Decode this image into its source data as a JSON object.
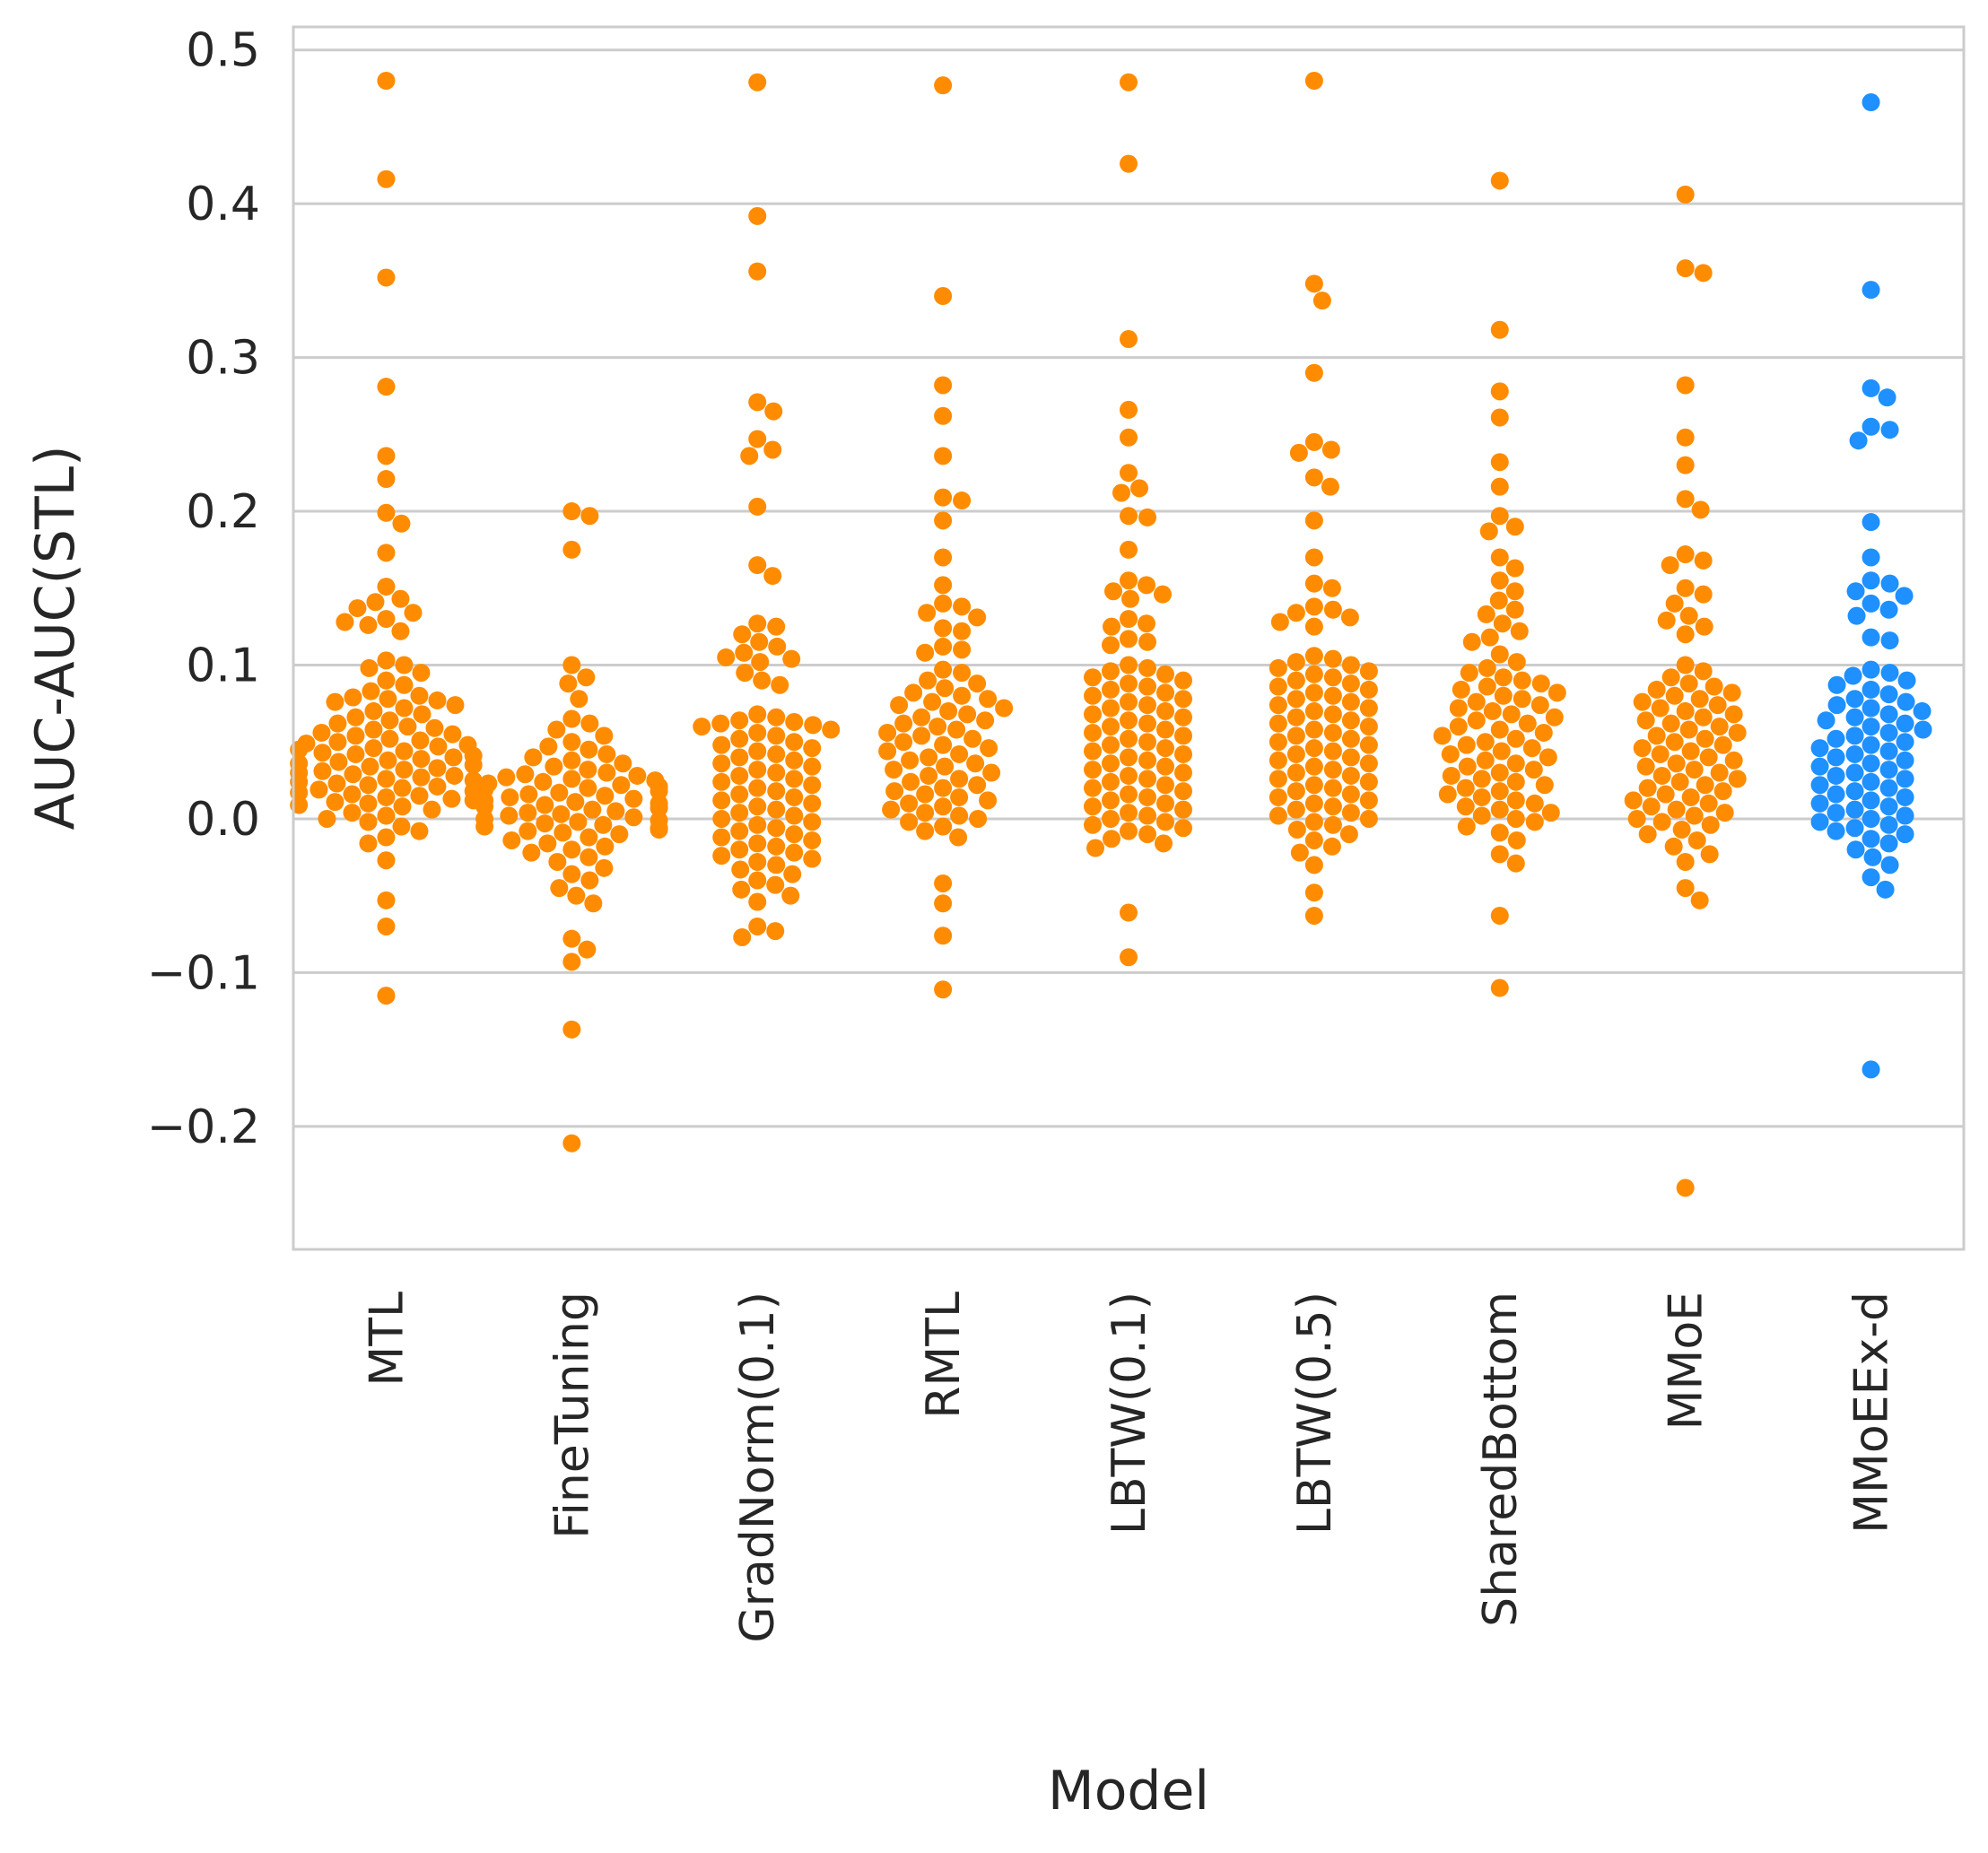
{
  "chart_data": {
    "type": "scatter",
    "subtype": "swarm",
    "xlabel": "Model",
    "ylabel": "AUC-AUC(STL)",
    "ylim": [
      -0.28,
      0.515
    ],
    "yticks": [
      -0.2,
      -0.1,
      0.0,
      0.1,
      0.2,
      0.3,
      0.4,
      0.5
    ],
    "ytick_labels": [
      "−0.2",
      "−0.1",
      "0.0",
      "0.1",
      "0.2",
      "0.3",
      "0.4",
      "0.5"
    ],
    "grid": "horizontal",
    "categories": [
      "MTL",
      "FineTuning",
      "GradNorm(0.1)",
      "RMTL",
      "LBTW(0.1)",
      "LBTW(0.5)",
      "SharedBottom",
      "MMoE",
      "MMoEEx-d"
    ],
    "colors": {
      "MTL": "#ff8c00",
      "FineTuning": "#ff8c00",
      "GradNorm(0.1)": "#ff8c00",
      "RMTL": "#ff8c00",
      "LBTW(0.1)": "#ff8c00",
      "LBTW(0.5)": "#ff8c00",
      "SharedBottom": "#ff8c00",
      "MMoE": "#ff8c00",
      "MMoEEx-d": "#1e90ff"
    },
    "series": [
      {
        "name": "MTL",
        "values": [
          0.48,
          0.416,
          0.352,
          0.281,
          0.236,
          0.221,
          0.199,
          0.192,
          0.173,
          0.151,
          0.143,
          0.141,
          0.137,
          0.134,
          0.13,
          0.128,
          0.126,
          0.122,
          0.103,
          0.1,
          0.098,
          0.095,
          0.09,
          0.087,
          0.083,
          0.08,
          0.079,
          0.078,
          0.077,
          0.076,
          0.074,
          0.072,
          0.07,
          0.068,
          0.066,
          0.064,
          0.062,
          0.06,
          0.059,
          0.058,
          0.056,
          0.055,
          0.054,
          0.052,
          0.051,
          0.05,
          0.049,
          0.048,
          0.047,
          0.046,
          0.045,
          0.044,
          0.043,
          0.042,
          0.041,
          0.04,
          0.039,
          0.038,
          0.037,
          0.036,
          0.035,
          0.034,
          0.033,
          0.032,
          0.031,
          0.03,
          0.029,
          0.028,
          0.027,
          0.026,
          0.025,
          0.024,
          0.023,
          0.022,
          0.021,
          0.02,
          0.019,
          0.018,
          0.017,
          0.016,
          0.015,
          0.014,
          0.013,
          0.012,
          0.011,
          0.01,
          0.009,
          0.008,
          0.006,
          0.004,
          0.002,
          0.0,
          -0.002,
          -0.005,
          -0.008,
          -0.012,
          -0.016,
          -0.027,
          -0.053,
          -0.07,
          -0.115
        ]
      },
      {
        "name": "FineTuning",
        "values": [
          0.2,
          0.197,
          0.175,
          0.1,
          0.092,
          0.088,
          0.078,
          0.065,
          0.062,
          0.058,
          0.054,
          0.05,
          0.047,
          0.045,
          0.042,
          0.04,
          0.038,
          0.036,
          0.034,
          0.032,
          0.03,
          0.029,
          0.028,
          0.027,
          0.026,
          0.025,
          0.024,
          0.023,
          0.022,
          0.021,
          0.02,
          0.019,
          0.018,
          0.017,
          0.016,
          0.015,
          0.014,
          0.013,
          0.012,
          0.011,
          0.01,
          0.009,
          0.008,
          0.007,
          0.006,
          0.005,
          0.004,
          0.003,
          0.002,
          0.001,
          0.0,
          -0.001,
          -0.002,
          -0.003,
          -0.004,
          -0.005,
          -0.006,
          -0.007,
          -0.008,
          -0.009,
          -0.01,
          -0.012,
          -0.014,
          -0.016,
          -0.018,
          -0.02,
          -0.022,
          -0.025,
          -0.028,
          -0.032,
          -0.036,
          -0.04,
          -0.045,
          -0.05,
          -0.055,
          -0.078,
          -0.085,
          -0.093,
          -0.137,
          -0.211
        ]
      },
      {
        "name": "GradNorm(0.1)",
        "values": [
          0.479,
          0.392,
          0.356,
          0.271,
          0.265,
          0.247,
          0.24,
          0.236,
          0.203,
          0.165,
          0.158,
          0.127,
          0.125,
          0.12,
          0.115,
          0.112,
          0.108,
          0.105,
          0.104,
          0.102,
          0.095,
          0.09,
          0.087,
          0.068,
          0.066,
          0.064,
          0.063,
          0.062,
          0.061,
          0.06,
          0.058,
          0.056,
          0.054,
          0.052,
          0.05,
          0.048,
          0.046,
          0.044,
          0.042,
          0.04,
          0.038,
          0.036,
          0.034,
          0.032,
          0.03,
          0.028,
          0.026,
          0.024,
          0.022,
          0.02,
          0.018,
          0.016,
          0.014,
          0.012,
          0.01,
          0.008,
          0.006,
          0.004,
          0.002,
          0.0,
          -0.002,
          -0.004,
          -0.006,
          -0.008,
          -0.01,
          -0.012,
          -0.014,
          -0.016,
          -0.018,
          -0.02,
          -0.022,
          -0.024,
          -0.026,
          -0.028,
          -0.03,
          -0.033,
          -0.036,
          -0.04,
          -0.043,
          -0.046,
          -0.05,
          -0.054,
          -0.07,
          -0.073,
          -0.077
        ]
      },
      {
        "name": "RMTL",
        "values": [
          0.477,
          0.34,
          0.282,
          0.262,
          0.236,
          0.209,
          0.207,
          0.194,
          0.17,
          0.152,
          0.14,
          0.138,
          0.134,
          0.131,
          0.124,
          0.122,
          0.112,
          0.11,
          0.108,
          0.097,
          0.095,
          0.09,
          0.088,
          0.085,
          0.082,
          0.08,
          0.078,
          0.076,
          0.074,
          0.072,
          0.07,
          0.068,
          0.066,
          0.064,
          0.062,
          0.06,
          0.058,
          0.056,
          0.054,
          0.052,
          0.05,
          0.048,
          0.046,
          0.044,
          0.042,
          0.04,
          0.038,
          0.036,
          0.034,
          0.032,
          0.03,
          0.028,
          0.026,
          0.024,
          0.022,
          0.02,
          0.018,
          0.016,
          0.014,
          0.012,
          0.01,
          0.008,
          0.006,
          0.004,
          0.002,
          0.0,
          -0.002,
          -0.005,
          -0.008,
          -0.012,
          -0.042,
          -0.055,
          -0.076,
          -0.111
        ]
      },
      {
        "name": "LBTW(0.1)",
        "values": [
          0.479,
          0.426,
          0.312,
          0.266,
          0.248,
          0.225,
          0.215,
          0.212,
          0.197,
          0.196,
          0.175,
          0.155,
          0.152,
          0.148,
          0.146,
          0.143,
          0.13,
          0.127,
          0.125,
          0.117,
          0.115,
          0.113,
          0.1,
          0.098,
          0.096,
          0.094,
          0.092,
          0.09,
          0.088,
          0.086,
          0.084,
          0.082,
          0.08,
          0.078,
          0.076,
          0.074,
          0.072,
          0.07,
          0.068,
          0.066,
          0.064,
          0.062,
          0.06,
          0.058,
          0.056,
          0.054,
          0.052,
          0.05,
          0.048,
          0.046,
          0.044,
          0.042,
          0.04,
          0.038,
          0.036,
          0.034,
          0.032,
          0.03,
          0.028,
          0.026,
          0.024,
          0.022,
          0.02,
          0.018,
          0.016,
          0.014,
          0.012,
          0.01,
          0.008,
          0.006,
          0.004,
          0.002,
          0.0,
          -0.002,
          -0.004,
          -0.006,
          -0.008,
          -0.01,
          -0.013,
          -0.016,
          -0.019,
          -0.061,
          -0.09
        ]
      },
      {
        "name": "LBTW(0.5)",
        "values": [
          0.48,
          0.348,
          0.337,
          0.29,
          0.245,
          0.24,
          0.238,
          0.222,
          0.216,
          0.194,
          0.17,
          0.153,
          0.15,
          0.138,
          0.136,
          0.134,
          0.131,
          0.128,
          0.125,
          0.106,
          0.104,
          0.102,
          0.1,
          0.098,
          0.096,
          0.094,
          0.092,
          0.09,
          0.088,
          0.086,
          0.084,
          0.082,
          0.08,
          0.078,
          0.076,
          0.074,
          0.072,
          0.07,
          0.068,
          0.066,
          0.064,
          0.062,
          0.06,
          0.058,
          0.056,
          0.054,
          0.052,
          0.05,
          0.048,
          0.046,
          0.044,
          0.042,
          0.04,
          0.038,
          0.036,
          0.034,
          0.032,
          0.03,
          0.028,
          0.026,
          0.024,
          0.022,
          0.02,
          0.018,
          0.016,
          0.014,
          0.012,
          0.01,
          0.008,
          0.006,
          0.004,
          0.002,
          0.0,
          -0.002,
          -0.004,
          -0.007,
          -0.01,
          -0.014,
          -0.018,
          -0.022,
          -0.03,
          -0.048,
          -0.063
        ]
      },
      {
        "name": "SharedBottom",
        "values": [
          0.415,
          0.318,
          0.278,
          0.261,
          0.232,
          0.216,
          0.197,
          0.19,
          0.187,
          0.17,
          0.163,
          0.155,
          0.148,
          0.142,
          0.136,
          0.133,
          0.127,
          0.122,
          0.118,
          0.115,
          0.107,
          0.102,
          0.098,
          0.095,
          0.092,
          0.09,
          0.088,
          0.086,
          0.084,
          0.082,
          0.08,
          0.078,
          0.076,
          0.074,
          0.072,
          0.07,
          0.068,
          0.066,
          0.064,
          0.062,
          0.06,
          0.058,
          0.056,
          0.054,
          0.052,
          0.05,
          0.048,
          0.046,
          0.044,
          0.042,
          0.04,
          0.038,
          0.036,
          0.034,
          0.032,
          0.03,
          0.028,
          0.026,
          0.024,
          0.022,
          0.02,
          0.018,
          0.016,
          0.014,
          0.012,
          0.01,
          0.008,
          0.006,
          0.004,
          0.002,
          0.0,
          -0.002,
          -0.005,
          -0.009,
          -0.014,
          -0.023,
          -0.029,
          -0.063,
          -0.11
        ]
      },
      {
        "name": "MMoE",
        "values": [
          0.406,
          0.358,
          0.355,
          0.282,
          0.248,
          0.23,
          0.208,
          0.201,
          0.172,
          0.168,
          0.165,
          0.15,
          0.146,
          0.14,
          0.132,
          0.129,
          0.125,
          0.12,
          0.1,
          0.096,
          0.092,
          0.088,
          0.086,
          0.084,
          0.082,
          0.08,
          0.078,
          0.076,
          0.074,
          0.072,
          0.07,
          0.068,
          0.066,
          0.064,
          0.062,
          0.06,
          0.058,
          0.056,
          0.054,
          0.052,
          0.05,
          0.048,
          0.046,
          0.044,
          0.042,
          0.04,
          0.038,
          0.036,
          0.034,
          0.032,
          0.03,
          0.028,
          0.026,
          0.024,
          0.022,
          0.02,
          0.018,
          0.016,
          0.014,
          0.012,
          0.01,
          0.008,
          0.006,
          0.004,
          0.002,
          0.0,
          -0.002,
          -0.004,
          -0.007,
          -0.01,
          -0.014,
          -0.018,
          -0.023,
          -0.028,
          -0.045,
          -0.053,
          -0.24
        ]
      },
      {
        "name": "MMoEEx-d",
        "values": [
          0.466,
          0.344,
          0.28,
          0.274,
          0.255,
          0.253,
          0.246,
          0.193,
          0.17,
          0.155,
          0.153,
          0.148,
          0.145,
          0.14,
          0.136,
          0.132,
          0.118,
          0.116,
          0.097,
          0.095,
          0.093,
          0.09,
          0.087,
          0.084,
          0.081,
          0.078,
          0.076,
          0.074,
          0.072,
          0.07,
          0.068,
          0.066,
          0.064,
          0.062,
          0.06,
          0.058,
          0.056,
          0.054,
          0.052,
          0.05,
          0.048,
          0.046,
          0.044,
          0.042,
          0.04,
          0.038,
          0.036,
          0.034,
          0.032,
          0.03,
          0.028,
          0.026,
          0.024,
          0.022,
          0.02,
          0.018,
          0.016,
          0.014,
          0.012,
          0.01,
          0.008,
          0.006,
          0.004,
          0.002,
          0.0,
          -0.002,
          -0.004,
          -0.006,
          -0.008,
          -0.01,
          -0.013,
          -0.016,
          -0.02,
          -0.025,
          -0.03,
          -0.038,
          -0.046,
          -0.163
        ]
      }
    ]
  }
}
